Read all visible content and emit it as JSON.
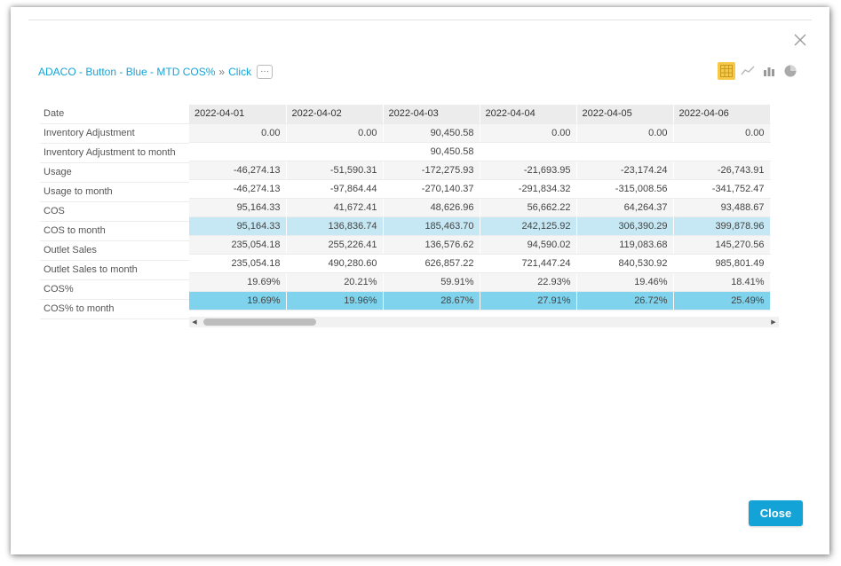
{
  "breadcrumb": {
    "source": "ADACO - Button - Blue - MTD COS%",
    "separator": "»",
    "current": "Click",
    "more_label": "···"
  },
  "viz_switch": [
    "table-icon",
    "line-chart-icon",
    "bar-chart-icon",
    "pie-chart-icon"
  ],
  "table": {
    "header_label": "Date",
    "columns": [
      "2022-04-01",
      "2022-04-02",
      "2022-04-03",
      "2022-04-04",
      "2022-04-05",
      "2022-04-06"
    ],
    "rows": [
      {
        "label": "Inventory Adjustment",
        "values": [
          "0.00",
          "0.00",
          "90,450.58",
          "0.00",
          "0.00",
          "0.00"
        ],
        "style": "grey"
      },
      {
        "label": "Inventory Adjustment to month",
        "values": [
          "",
          "",
          "90,450.58",
          "",
          "",
          ""
        ],
        "style": "plain"
      },
      {
        "label": "Usage",
        "values": [
          "-46,274.13",
          "-51,590.31",
          "-172,275.93",
          "-21,693.95",
          "-23,174.24",
          "-26,743.91"
        ],
        "style": "grey"
      },
      {
        "label": "Usage to month",
        "values": [
          "-46,274.13",
          "-97,864.44",
          "-270,140.37",
          "-291,834.32",
          "-315,008.56",
          "-341,752.47"
        ],
        "style": "plain"
      },
      {
        "label": "COS",
        "values": [
          "95,164.33",
          "41,672.41",
          "48,626.96",
          "56,662.22",
          "64,264.37",
          "93,488.67"
        ],
        "style": "grey"
      },
      {
        "label": "COS to month",
        "values": [
          "95,164.33",
          "136,836.74",
          "185,463.70",
          "242,125.92",
          "306,390.29",
          "399,878.96"
        ],
        "style": "hl-light"
      },
      {
        "label": "Outlet Sales",
        "values": [
          "235,054.18",
          "255,226.41",
          "136,576.62",
          "94,590.02",
          "119,083.68",
          "145,270.56"
        ],
        "style": "grey"
      },
      {
        "label": "Outlet Sales to month",
        "values": [
          "235,054.18",
          "490,280.60",
          "626,857.22",
          "721,447.24",
          "840,530.92",
          "985,801.49"
        ],
        "style": "plain"
      },
      {
        "label": "COS%",
        "values": [
          "19.69%",
          "20.21%",
          "59.91%",
          "22.93%",
          "19.46%",
          "18.41%"
        ],
        "style": "grey"
      },
      {
        "label": "COS% to month",
        "values": [
          "19.69%",
          "19.96%",
          "28.67%",
          "27.91%",
          "26.72%",
          "25.49%"
        ],
        "style": "hl-dark"
      }
    ]
  },
  "footer": {
    "close_label": "Close"
  },
  "colors": {
    "accent": "#14a3d6",
    "highlight_light": "#c6e8f4",
    "highlight_dark": "#7fd3ec",
    "active_viz": "#f7c94a"
  }
}
